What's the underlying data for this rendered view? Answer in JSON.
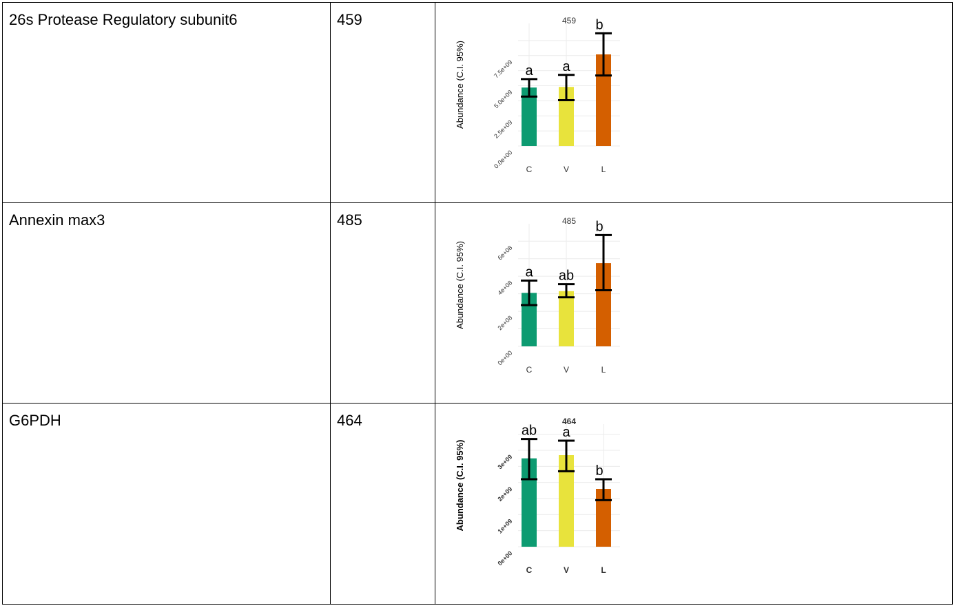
{
  "rows": [
    {
      "name": "26s Protease Regulatory subunit6",
      "id": "459"
    },
    {
      "name": "Annexin max3",
      "id": "485"
    },
    {
      "name": "G6PDH",
      "id": "464"
    }
  ],
  "colors": {
    "C": "#0d9b71",
    "V": "#e8e33c",
    "L": "#d45f00",
    "grid": "#ebebeb",
    "errorbar": "#000000"
  },
  "chart_data": [
    {
      "type": "bar",
      "title": "459",
      "ylabel": "Abundance (C.I. 95%)",
      "categories": [
        "C",
        "V",
        "L"
      ],
      "values": [
        4850000000.0,
        4900000000.0,
        7600000000.0
      ],
      "ci_low": [
        4100000000.0,
        3800000000.0,
        5850000000.0
      ],
      "ci_high": [
        5550000000.0,
        5900000000.0,
        9350000000.0
      ],
      "letters": [
        "a",
        "a",
        "b"
      ],
      "ylim": [
        0,
        9600000000.0
      ],
      "yticks": [
        0,
        2500000000.0,
        5000000000.0,
        7500000000.0
      ],
      "yticklabels": [
        "0.0e+00",
        "2.5e+09",
        "5.0e+09",
        "7.5e+09"
      ],
      "grid": true,
      "bold": false
    },
    {
      "type": "bar",
      "title": "485",
      "ylabel": "Abundance (C.I. 95%)",
      "categories": [
        "C",
        "V",
        "L"
      ],
      "values": [
        305000000.0,
        315000000.0,
        475000000.0
      ],
      "ci_low": [
        235000000.0,
        280000000.0,
        320000000.0
      ],
      "ci_high": [
        375000000.0,
        355000000.0,
        635000000.0
      ],
      "letters": [
        "a",
        "ab",
        "b"
      ],
      "ylim": [
        0,
        660000000.0
      ],
      "yticks": [
        0,
        200000000.0,
        400000000.0,
        600000000.0
      ],
      "yticklabels": [
        "0e+00",
        "2e+08",
        "4e+08",
        "6e+08"
      ],
      "grid": true,
      "bold": false
    },
    {
      "type": "bar",
      "title": "464",
      "ylabel": "Abundance (C.I. 95%)",
      "categories": [
        "C",
        "V",
        "L"
      ],
      "values": [
        2750000000.0,
        2850000000.0,
        1800000000.0
      ],
      "ci_low": [
        2100000000.0,
        2350000000.0,
        1450000000.0
      ],
      "ci_high": [
        3350000000.0,
        3300000000.0,
        2100000000.0
      ],
      "letters": [
        "ab",
        "a",
        "b"
      ],
      "ylim": [
        0,
        3600000000.0
      ],
      "yticks": [
        0,
        1000000000.0,
        2000000000.0,
        3000000000.0
      ],
      "yticklabels": [
        "0e+00",
        "1e+09",
        "2e+09",
        "3e+09"
      ],
      "grid": true,
      "bold": true
    }
  ]
}
